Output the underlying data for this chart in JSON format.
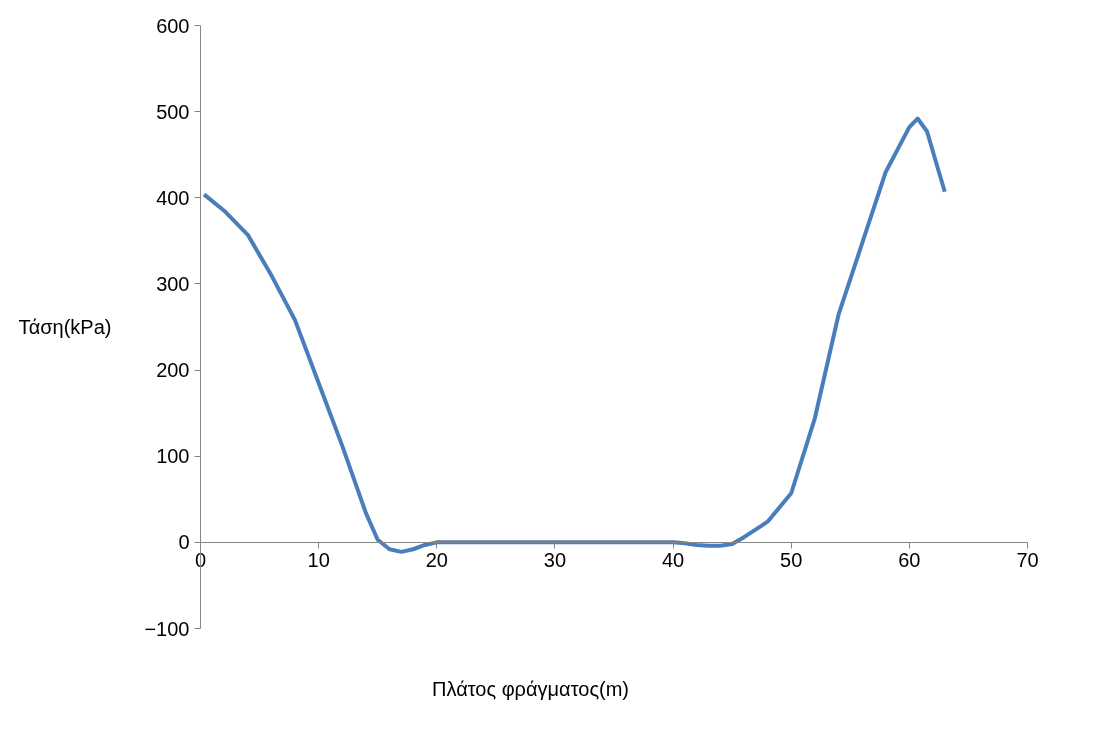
{
  "chart_data": {
    "type": "line",
    "xlabel": "Πλάτος φράγματος(m)",
    "ylabel": "Τάση(kPa)",
    "xlim": [
      0,
      70
    ],
    "ylim": [
      -100,
      600
    ],
    "xticks": [
      0,
      10,
      20,
      30,
      40,
      50,
      60,
      70
    ],
    "yticks": [
      -100,
      0,
      100,
      200,
      300,
      400,
      500,
      600
    ],
    "grid": false,
    "marker": "none",
    "line_style": "solid",
    "series": [
      {
        "color": "#4a7ebb",
        "x": [
          0.3,
          2,
          4,
          6,
          8,
          10,
          12,
          14,
          15,
          16,
          17,
          18,
          19,
          20,
          25,
          30,
          35,
          40,
          41,
          42,
          43,
          44,
          45,
          46,
          48,
          50,
          52,
          54,
          56,
          58,
          60,
          60.7,
          61.5,
          62.5,
          63
        ],
        "values": [
          404,
          385,
          357,
          310,
          258,
          185,
          112,
          34,
          3,
          -8,
          -11,
          -8,
          -3,
          0,
          0,
          0,
          0,
          0,
          -1,
          -3,
          -4,
          -4,
          -2,
          6,
          24,
          57,
          144,
          264,
          347,
          430,
          482,
          492,
          477,
          430,
          407
        ]
      }
    ]
  }
}
